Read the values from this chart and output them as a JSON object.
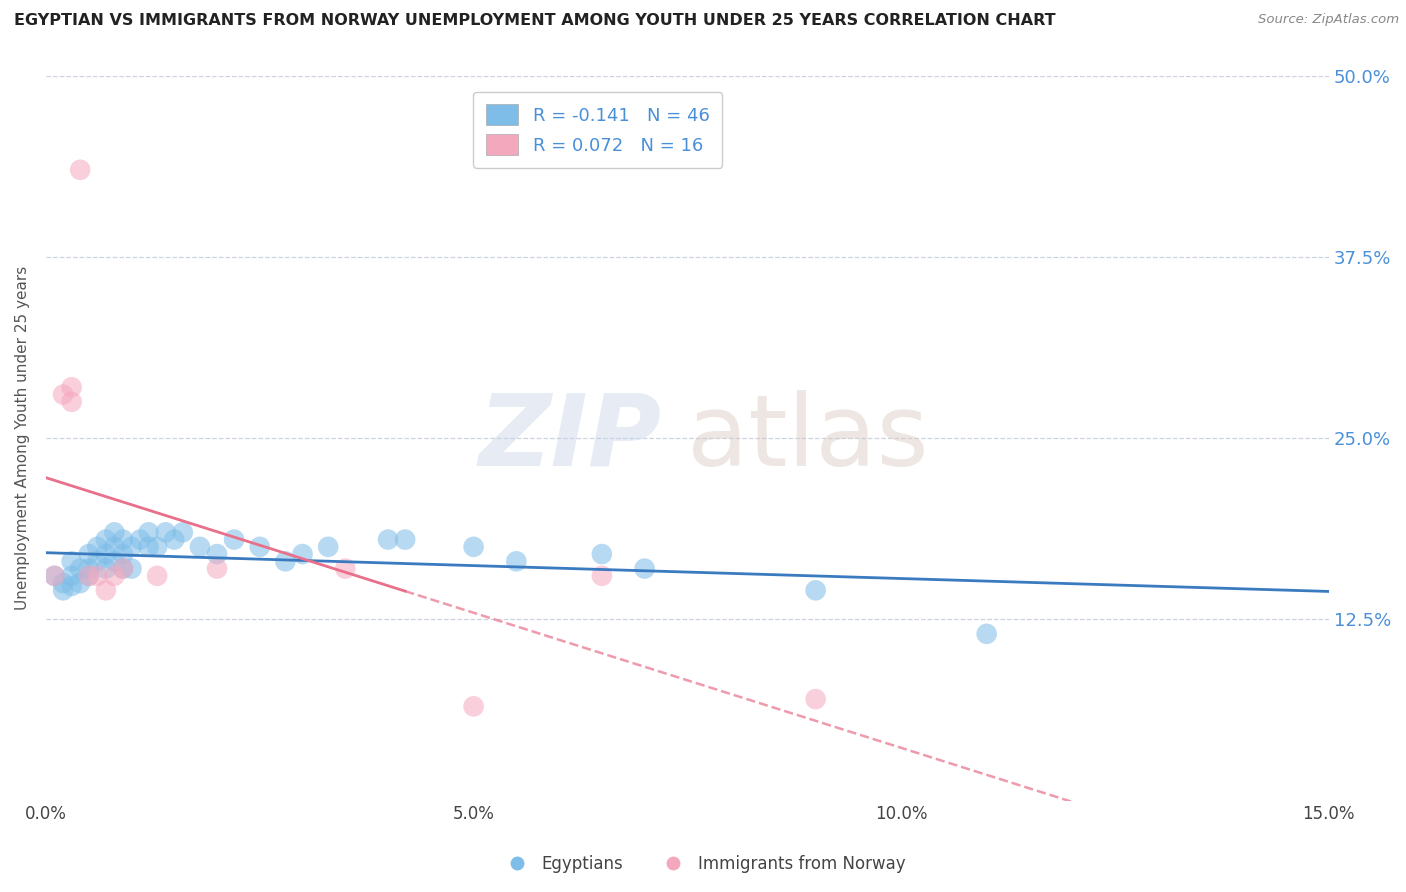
{
  "title": "EGYPTIAN VS IMMIGRANTS FROM NORWAY UNEMPLOYMENT AMONG YOUTH UNDER 25 YEARS CORRELATION CHART",
  "source": "Source: ZipAtlas.com",
  "ylabel": "Unemployment Among Youth under 25 years",
  "xlim": [
    0,
    0.15
  ],
  "ylim": [
    0,
    0.5
  ],
  "yticks": [
    0,
    0.125,
    0.25,
    0.375,
    0.5
  ],
  "right_ytick_labels": [
    "",
    "12.5%",
    "25.0%",
    "37.5%",
    "50.0%"
  ],
  "xticks": [
    0,
    0.05,
    0.1,
    0.15
  ],
  "xtick_labels": [
    "0.0%",
    "5.0%",
    "10.0%",
    "15.0%"
  ],
  "legend_label1": "R = -0.141   N = 46",
  "legend_label2": "R = 0.072   N = 16",
  "legend_footer1": "Egyptians",
  "legend_footer2": "Immigrants from Norway",
  "watermark_zip": "ZIP",
  "watermark_atlas": "atlas",
  "blue_color": "#7dbde8",
  "pink_color": "#f4a8be",
  "trend_blue": "#3a7abf",
  "trend_pink": "#e8708a",
  "axis_label_color": "#4a90d9",
  "egyptians_x": [
    0.001,
    0.002,
    0.002,
    0.003,
    0.003,
    0.003,
    0.004,
    0.004,
    0.005,
    0.005,
    0.005,
    0.006,
    0.006,
    0.007,
    0.007,
    0.007,
    0.008,
    0.008,
    0.008,
    0.009,
    0.009,
    0.009,
    0.01,
    0.01,
    0.011,
    0.012,
    0.012,
    0.013,
    0.014,
    0.015,
    0.016,
    0.018,
    0.02,
    0.022,
    0.025,
    0.028,
    0.03,
    0.033,
    0.04,
    0.042,
    0.05,
    0.055,
    0.065,
    0.07,
    0.09,
    0.11
  ],
  "egyptians_y": [
    0.155,
    0.15,
    0.145,
    0.165,
    0.155,
    0.148,
    0.16,
    0.15,
    0.17,
    0.16,
    0.155,
    0.175,
    0.165,
    0.18,
    0.17,
    0.16,
    0.185,
    0.175,
    0.165,
    0.18,
    0.17,
    0.16,
    0.175,
    0.16,
    0.18,
    0.185,
    0.175,
    0.175,
    0.185,
    0.18,
    0.185,
    0.175,
    0.17,
    0.18,
    0.175,
    0.165,
    0.17,
    0.175,
    0.18,
    0.18,
    0.175,
    0.165,
    0.17,
    0.16,
    0.145,
    0.115
  ],
  "norway_x": [
    0.001,
    0.002,
    0.003,
    0.003,
    0.004,
    0.005,
    0.006,
    0.007,
    0.008,
    0.009,
    0.013,
    0.02,
    0.035,
    0.05,
    0.065,
    0.09
  ],
  "norway_y": [
    0.155,
    0.28,
    0.285,
    0.275,
    0.435,
    0.155,
    0.155,
    0.145,
    0.155,
    0.16,
    0.155,
    0.16,
    0.16,
    0.065,
    0.155,
    0.07
  ]
}
